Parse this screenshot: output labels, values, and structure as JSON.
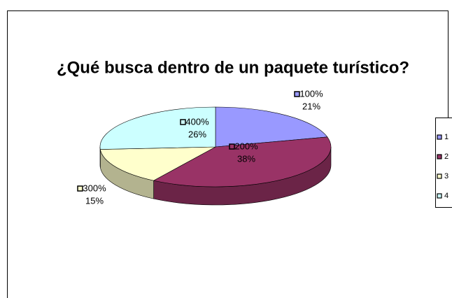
{
  "chart_data": {
    "type": "pie",
    "title": "¿Qué busca dentro de un paquete turístico?",
    "categories": [
      "1",
      "2",
      "3",
      "4"
    ],
    "data_label_names": [
      "100%",
      "200%",
      "300%",
      "400%"
    ],
    "values": [
      21,
      38,
      15,
      26
    ],
    "value_labels": [
      "21%",
      "38%",
      "15%",
      "26%"
    ],
    "colors": [
      "#9999ff",
      "#993366",
      "#ffffcc",
      "#ccffff"
    ],
    "legend": "right"
  }
}
